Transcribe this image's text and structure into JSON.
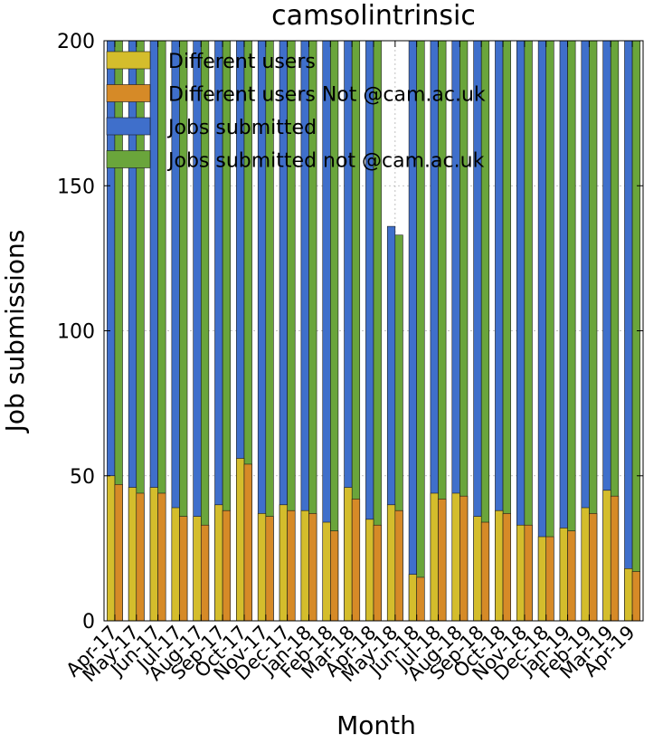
{
  "chart_data": {
    "type": "bar",
    "title": "camsolintrinsic",
    "xlabel": "Month",
    "ylabel": "Job submissions",
    "ylim": [
      0,
      200
    ],
    "yticks": [
      0,
      50,
      100,
      150,
      200
    ],
    "grid": true,
    "legend_position": "top-left",
    "categories": [
      "Apr-17",
      "May-17",
      "Jun-17",
      "Jul-17",
      "Aug-17",
      "Sep-17",
      "Oct-17",
      "Nov-17",
      "Dec-17",
      "Jan-18",
      "Feb-18",
      "Mar-18",
      "Apr-18",
      "May-18",
      "Jun-18",
      "Jul-18",
      "Aug-18",
      "Sep-18",
      "Oct-18",
      "Nov-18",
      "Dec-18",
      "Jan-19",
      "Feb-19",
      "Mar-19",
      "Apr-19"
    ],
    "series": [
      {
        "name": "Different users",
        "color": "#d4bd2c",
        "values": [
          50,
          46,
          46,
          39,
          36,
          40,
          56,
          37,
          40,
          38,
          34,
          46,
          35,
          40,
          16,
          44,
          44,
          36,
          38,
          33,
          29,
          32,
          39,
          45,
          18
        ]
      },
      {
        "name": "Different users Not @cam.ac.uk",
        "color": "#d68a27",
        "values": [
          47,
          44,
          44,
          36,
          33,
          38,
          54,
          36,
          38,
          37,
          31,
          42,
          33,
          38,
          15,
          42,
          43,
          34,
          37,
          33,
          29,
          31,
          37,
          43,
          17
        ]
      },
      {
        "name": "Jobs submitted",
        "color": "#3f6fcb",
        "values": [
          200,
          200,
          200,
          200,
          200,
          200,
          200,
          200,
          200,
          200,
          200,
          200,
          200,
          136,
          200,
          200,
          200,
          200,
          200,
          200,
          200,
          200,
          200,
          200,
          200
        ]
      },
      {
        "name": "Jobs submitted not @cam.ac.uk",
        "color": "#6aa53b",
        "values": [
          200,
          200,
          200,
          200,
          200,
          200,
          200,
          200,
          200,
          200,
          200,
          200,
          200,
          133,
          200,
          200,
          200,
          200,
          200,
          200,
          200,
          200,
          200,
          200,
          200
        ]
      }
    ]
  }
}
